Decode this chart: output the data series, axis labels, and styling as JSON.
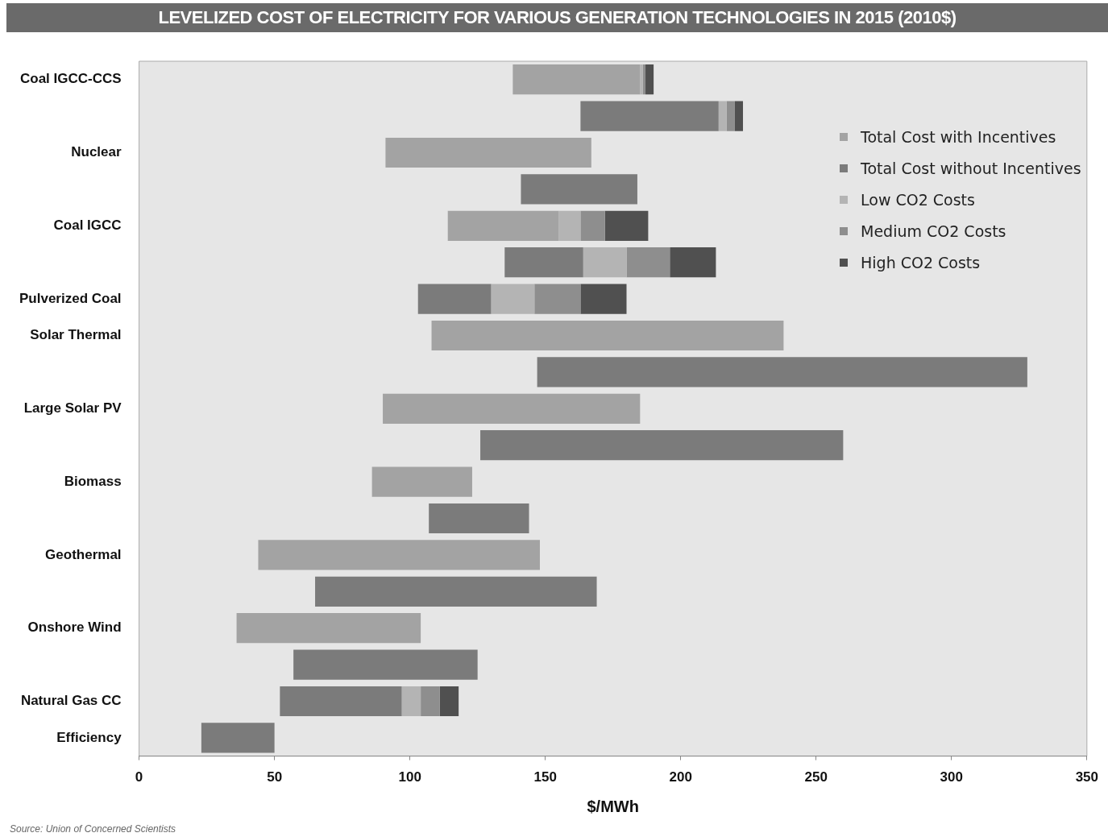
{
  "chart_data": {
    "type": "bar",
    "orientation": "horizontal",
    "title": "LEVELIZED COST OF ELECTRICITY FOR VARIOUS GENERATION TECHNOLOGIES IN 2015 (2010$)",
    "xlabel": "$/MWh",
    "annotations": [
      "Source: Union of Concerned Scientists"
    ],
    "categories": [
      "Coal IGCC-CCS",
      null,
      "Nuclear",
      null,
      "Coal IGCC",
      null,
      "Pulverized Coal",
      "Solar Thermal",
      null,
      "Large Solar PV",
      null,
      "Biomass",
      null,
      "Geothermal",
      null,
      "Onshore Wind",
      null,
      "Natural Gas CC",
      "Efficiency"
    ],
    "series": [
      {
        "name": "Total Cost with Incentives",
        "color": "#a3a3a3",
        "base": [
          138,
          null,
          91,
          null,
          114,
          null,
          null,
          108,
          null,
          90,
          null,
          86,
          null,
          44,
          null,
          36,
          null,
          null,
          null
        ],
        "values": [
          47,
          null,
          76,
          null,
          41,
          null,
          null,
          130,
          null,
          95,
          null,
          37,
          null,
          104,
          null,
          68,
          null,
          null,
          null
        ]
      },
      {
        "name": "Total Cost without Incentives",
        "color": "#7b7b7b",
        "base": [
          null,
          163,
          null,
          141,
          null,
          135,
          103,
          null,
          147,
          null,
          126,
          null,
          107,
          null,
          65,
          null,
          57,
          52,
          23
        ],
        "values": [
          null,
          51,
          null,
          43,
          null,
          29,
          27,
          null,
          181,
          null,
          134,
          null,
          37,
          null,
          104,
          null,
          68,
          45,
          27
        ]
      },
      {
        "name": "Low CO2 Costs",
        "color": "#b4b4b4",
        "base": [
          185,
          214,
          null,
          null,
          155,
          164,
          130,
          null,
          null,
          null,
          null,
          null,
          null,
          null,
          null,
          null,
          null,
          97,
          null
        ],
        "values": [
          1,
          3,
          null,
          null,
          8,
          16,
          16,
          null,
          null,
          null,
          null,
          null,
          null,
          null,
          null,
          null,
          null,
          7,
          null
        ]
      },
      {
        "name": "Medium CO2 Costs",
        "color": "#8e8e8e",
        "base": [
          186,
          217,
          null,
          null,
          163,
          180,
          146,
          null,
          null,
          null,
          null,
          null,
          null,
          null,
          null,
          null,
          null,
          104,
          null
        ],
        "values": [
          1,
          3,
          null,
          null,
          9,
          16,
          17,
          null,
          null,
          null,
          null,
          null,
          null,
          null,
          null,
          null,
          null,
          7,
          null
        ]
      },
      {
        "name": "High CO2 Costs",
        "color": "#505050",
        "base": [
          187,
          220,
          null,
          null,
          172,
          196,
          163,
          null,
          null,
          null,
          null,
          null,
          null,
          null,
          null,
          null,
          null,
          111,
          null
        ],
        "values": [
          3,
          3,
          null,
          null,
          16,
          17,
          17,
          null,
          null,
          null,
          null,
          null,
          null,
          null,
          null,
          null,
          null,
          7,
          null
        ]
      }
    ],
    "xlim": [
      0,
      350
    ],
    "xticks": [
      0,
      50,
      100,
      150,
      200,
      250,
      300,
      350
    ],
    "grid": false,
    "legend": "top right"
  }
}
